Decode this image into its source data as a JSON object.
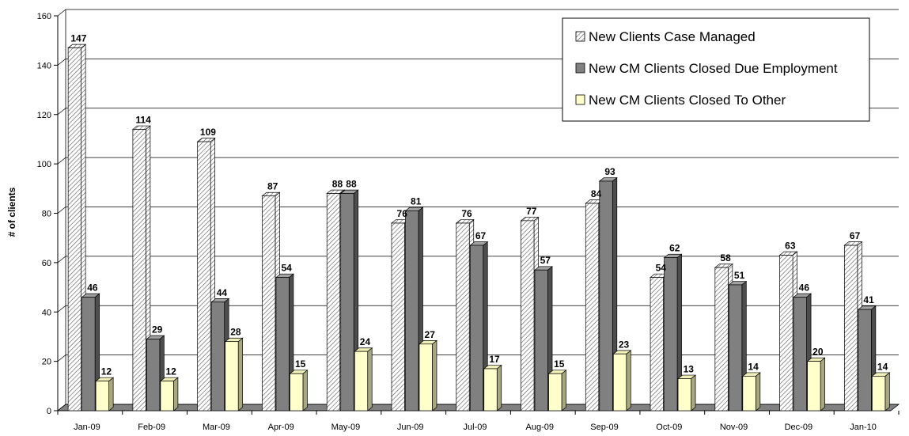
{
  "chart_data": {
    "type": "bar",
    "ylabel": "# of clients",
    "xlabel": "",
    "title": "",
    "ylim": [
      0,
      160
    ],
    "yticks": [
      0,
      20,
      40,
      60,
      80,
      100,
      120,
      140,
      160
    ],
    "grid": true,
    "legend_position": "top-right",
    "categories": [
      "Jan-09",
      "Feb-09",
      "Mar-09",
      "Apr-09",
      "May-09",
      "Jun-09",
      "Jul-09",
      "Aug-09",
      "Sep-09",
      "Oct-09",
      "Nov-09",
      "Dec-09",
      "Jan-10"
    ],
    "series": [
      {
        "name": "New Clients Case Managed",
        "fill": "hatch",
        "color": "#ffffff",
        "values": [
          147,
          114,
          109,
          87,
          88,
          76,
          76,
          77,
          84,
          54,
          58,
          63,
          67
        ]
      },
      {
        "name": "New CM Clients Closed Due Employment",
        "fill": "solid",
        "color": "#808080",
        "values": [
          46,
          29,
          44,
          54,
          88,
          81,
          67,
          57,
          93,
          62,
          51,
          46,
          41
        ]
      },
      {
        "name": "New CM Clients Closed To Other",
        "fill": "solid",
        "color": "#ffffcc",
        "values": [
          12,
          12,
          28,
          15,
          24,
          27,
          17,
          15,
          23,
          13,
          14,
          20,
          14
        ]
      }
    ]
  }
}
